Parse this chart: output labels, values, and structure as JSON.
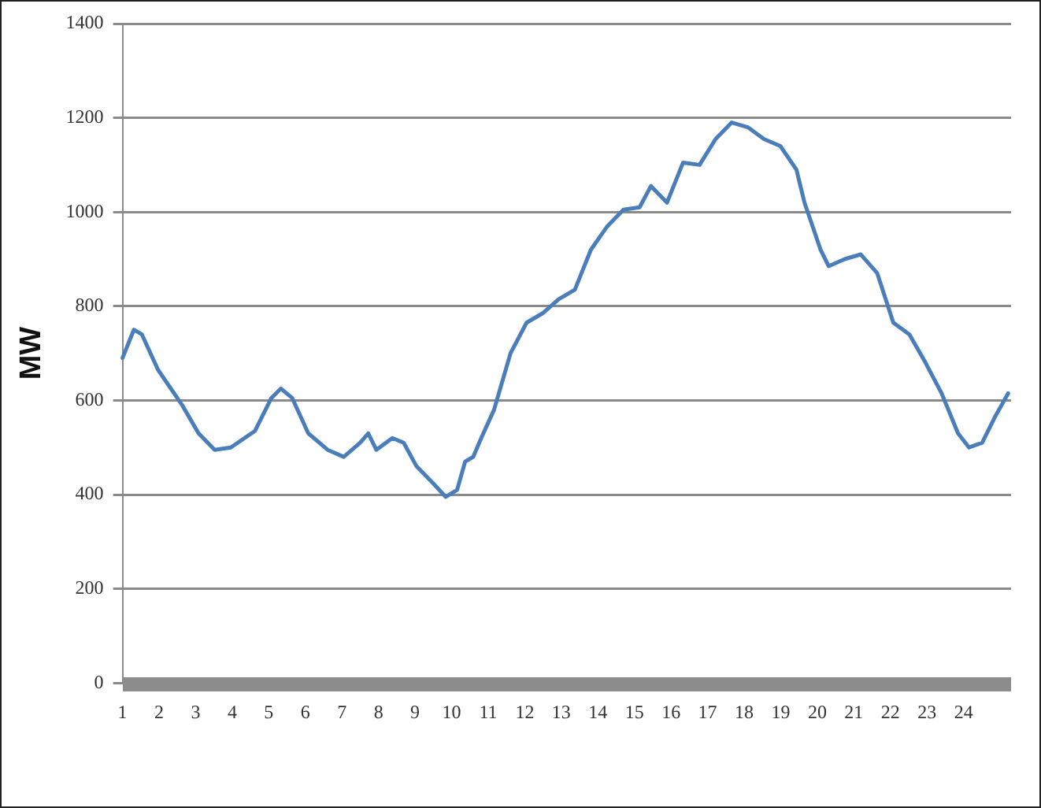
{
  "chart_data": {
    "type": "line",
    "ylabel": "MW",
    "xlim": [
      1,
      25.3
    ],
    "xticks": [
      1,
      2,
      3,
      4,
      5,
      6,
      7,
      8,
      9,
      10,
      11,
      12,
      13,
      14,
      15,
      16,
      17,
      18,
      19,
      20,
      21,
      22,
      23,
      24
    ],
    "ylim": [
      0,
      1400
    ],
    "yticks": [
      0,
      200,
      400,
      600,
      800,
      1000,
      1200,
      1400
    ],
    "grid": "y",
    "legend": false,
    "marker": "none",
    "line_style": "solid",
    "series": [
      {
        "color": "#4a7ebb",
        "x": [
          1.0,
          1.31,
          1.53,
          1.97,
          2.63,
          3.08,
          3.52,
          3.96,
          4.62,
          5.07,
          5.33,
          5.64,
          6.08,
          6.61,
          7.05,
          7.5,
          7.72,
          7.94,
          8.38,
          8.69,
          9.04,
          9.48,
          9.84,
          10.15,
          10.37,
          10.59,
          10.81,
          11.16,
          11.61,
          12.05,
          12.49,
          12.93,
          13.37,
          13.81,
          14.26,
          14.7,
          15.14,
          15.45,
          15.89,
          16.33,
          16.78,
          17.22,
          17.66,
          18.1,
          18.54,
          18.99,
          19.43,
          19.65,
          20.09,
          20.31,
          20.75,
          21.19,
          21.64,
          22.08,
          22.52,
          22.96,
          23.4,
          23.85,
          24.15,
          24.51,
          24.86,
          25.22
        ],
        "values": [
          690,
          750,
          740,
          665,
          590,
          530,
          495,
          500,
          535,
          605,
          625,
          605,
          530,
          495,
          480,
          510,
          530,
          495,
          520,
          510,
          460,
          425,
          395,
          410,
          470,
          480,
          520,
          580,
          700,
          765,
          785,
          815,
          835,
          920,
          970,
          1005,
          1010,
          1055,
          1020,
          1105,
          1100,
          1155,
          1190,
          1180,
          1155,
          1140,
          1090,
          1020,
          920,
          885,
          900,
          910,
          870,
          765,
          740,
          680,
          615,
          530,
          500,
          510,
          565,
          615
        ]
      }
    ]
  }
}
